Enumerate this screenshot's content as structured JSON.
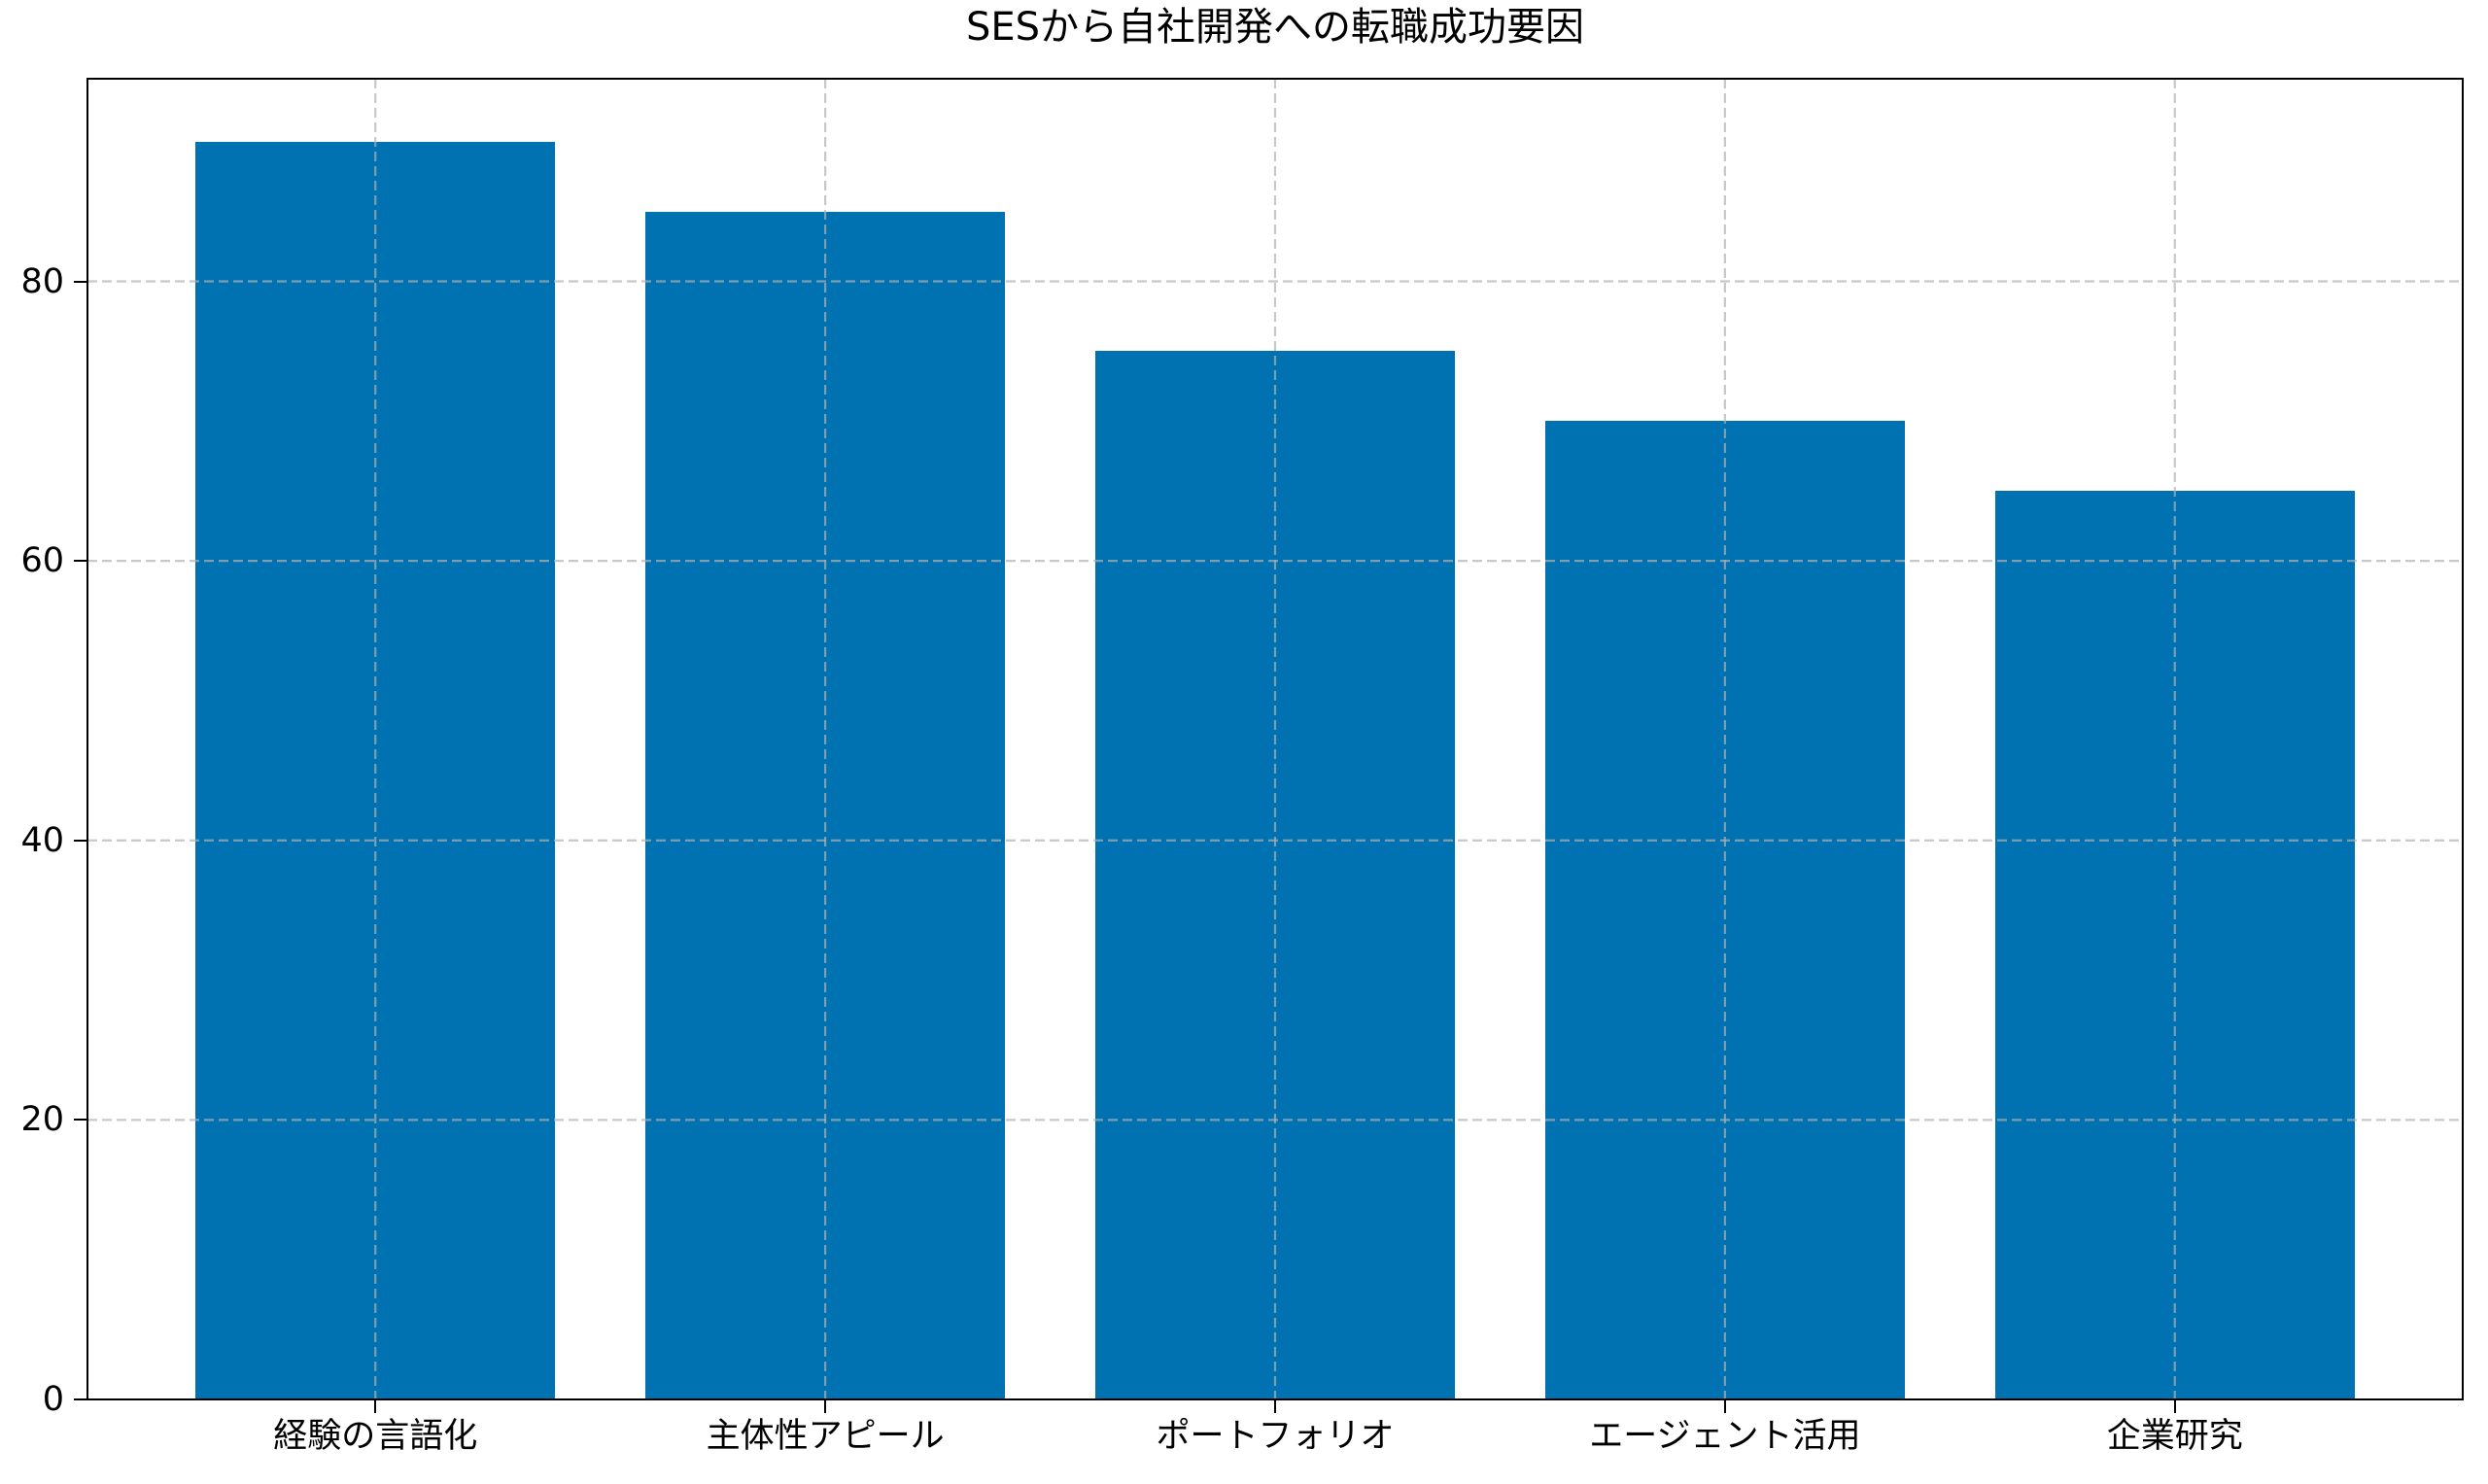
{
  "figure": {
    "background": "#ffffff",
    "bar_color": "#0072b2",
    "grid_color": "#b0b0b0",
    "grid_opacity": 0.7,
    "axis_color": "#000000",
    "text_color": "#000000"
  },
  "chart_data": {
    "type": "bar",
    "title": "SESから自社開発への転職成功要因",
    "categories": [
      "経験の言語化",
      "主体性アピール",
      "ポートフォリオ",
      "エージェント活用",
      "企業研究"
    ],
    "values": [
      90,
      85,
      75,
      70,
      65
    ],
    "xlabel": "",
    "ylabel": "",
    "ylim": [
      0,
      94.5
    ],
    "yticks": [
      0,
      20,
      40,
      60,
      80
    ],
    "bar_width_fraction": 0.8,
    "x_margin_fraction": 0.24,
    "grid": "dashed",
    "grid_lines": "horizontal at yticks and vertical at bar centers, drawn above bars",
    "legend": "none"
  }
}
